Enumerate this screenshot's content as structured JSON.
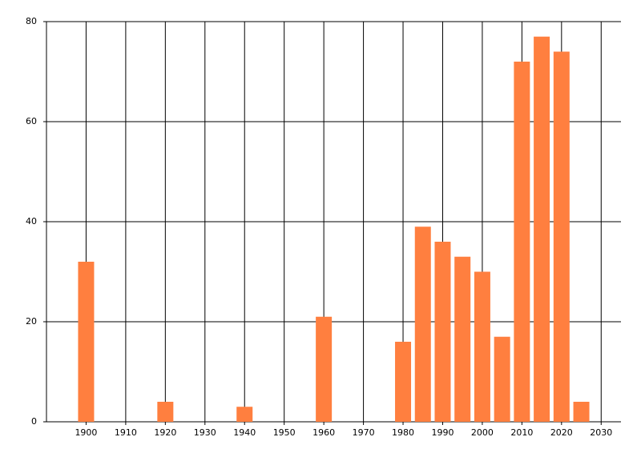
{
  "chart_data": {
    "type": "bar",
    "x": [
      1900,
      1920,
      1940,
      1960,
      1980,
      1985,
      1990,
      1995,
      2000,
      2005,
      2010,
      2015,
      2020,
      2025
    ],
    "values": [
      32,
      4,
      3,
      21,
      16,
      39,
      36,
      33,
      30,
      17,
      72,
      77,
      74,
      4
    ],
    "color": "#ff7f3f",
    "xlim": [
      1890,
      2035
    ],
    "xticks": [
      1900,
      1910,
      1920,
      1930,
      1940,
      1950,
      1960,
      1970,
      1980,
      1990,
      2000,
      2010,
      2020,
      2030
    ],
    "ylim": [
      0,
      80
    ],
    "yticks": [
      0,
      20,
      40,
      60,
      80
    ],
    "grid": true
  }
}
